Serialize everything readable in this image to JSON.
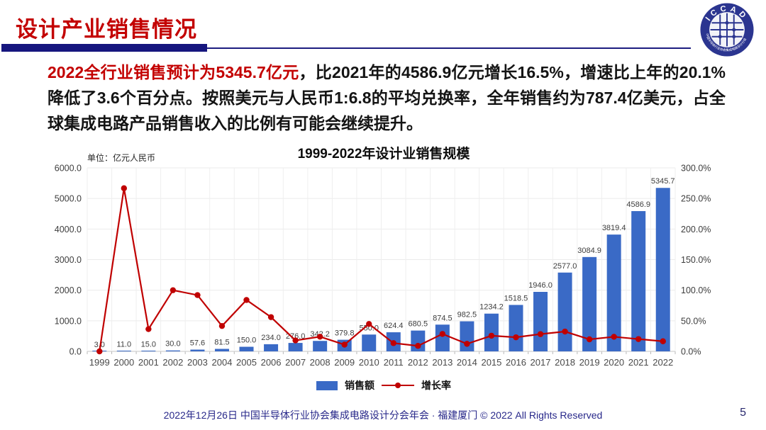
{
  "header": {
    "title": "设计产业销售情况"
  },
  "logo": {
    "text": "ICCAD",
    "ring_text": "中国半导体行业协会集成电路设计分会"
  },
  "paragraph": {
    "highlight": "2022全行业销售预计为5345.7亿元",
    "rest": "，比2021年的4586.9亿元增长16.5%，增速比上年的20.1%降低了3.6个百分点。按照美元与人民币1:6.8的平均兑换率，全年销售约为787.4亿美元，占全球集成电路产品销售收入的比例有可能会继续提升。"
  },
  "chart": {
    "title": "1999-2022年设计业销售规模",
    "unit_label": "单位：亿元人民币",
    "colors": {
      "bar": "#3a6ac6",
      "line": "#c00000"
    },
    "legend": [
      {
        "label": "销售额"
      },
      {
        "label": "增长率"
      }
    ]
  },
  "chart_data": {
    "type": "combo",
    "title": "1999-2022年设计业销售规模",
    "unit": "亿元人民币",
    "categories": [
      "1999",
      "2000",
      "2001",
      "2002",
      "2003",
      "2004",
      "2005",
      "2006",
      "2007",
      "2008",
      "2009",
      "2010",
      "2011",
      "2012",
      "2013",
      "2014",
      "2015",
      "2016",
      "2017",
      "2018",
      "2019",
      "2020",
      "2021",
      "2022"
    ],
    "series": [
      {
        "name": "销售额",
        "type": "bar",
        "axis": "left",
        "values": [
          3.0,
          11.0,
          15.0,
          30.0,
          57.6,
          81.5,
          150.0,
          234.0,
          276.0,
          342.2,
          379.8,
          550.0,
          624.4,
          680.5,
          874.5,
          982.5,
          1234.2,
          1518.5,
          1946.0,
          2577.0,
          3084.9,
          3819.4,
          4586.9,
          5345.7
        ]
      },
      {
        "name": "增长率",
        "type": "line",
        "axis": "right",
        "unit": "%",
        "values": [
          0.0,
          266.7,
          36.4,
          100.0,
          92.0,
          41.5,
          84.0,
          56.0,
          17.9,
          24.0,
          11.0,
          44.8,
          13.5,
          9.0,
          28.5,
          12.3,
          25.6,
          23.0,
          28.2,
          32.4,
          19.7,
          23.8,
          20.1,
          16.5
        ]
      }
    ],
    "left_axis": {
      "min": 0,
      "max": 6000,
      "step": 1000,
      "tick_labels": [
        "0.0",
        "1000.0",
        "2000.0",
        "3000.0",
        "4000.0",
        "5000.0",
        "6000.0"
      ]
    },
    "right_axis": {
      "min": 0,
      "max": 300,
      "step": 50,
      "tick_labels": [
        "0.0%",
        "50.0%",
        "100.0%",
        "150.0%",
        "200.0%",
        "250.0%",
        "300.0%"
      ]
    },
    "grid": true,
    "legend_position": "bottom"
  },
  "footer": {
    "text": "2022年12月26日 中国半导体行业协会集成电路设计分会年会 · 福建厦门 © 2022 All Rights Reserved",
    "page_number": "5"
  }
}
